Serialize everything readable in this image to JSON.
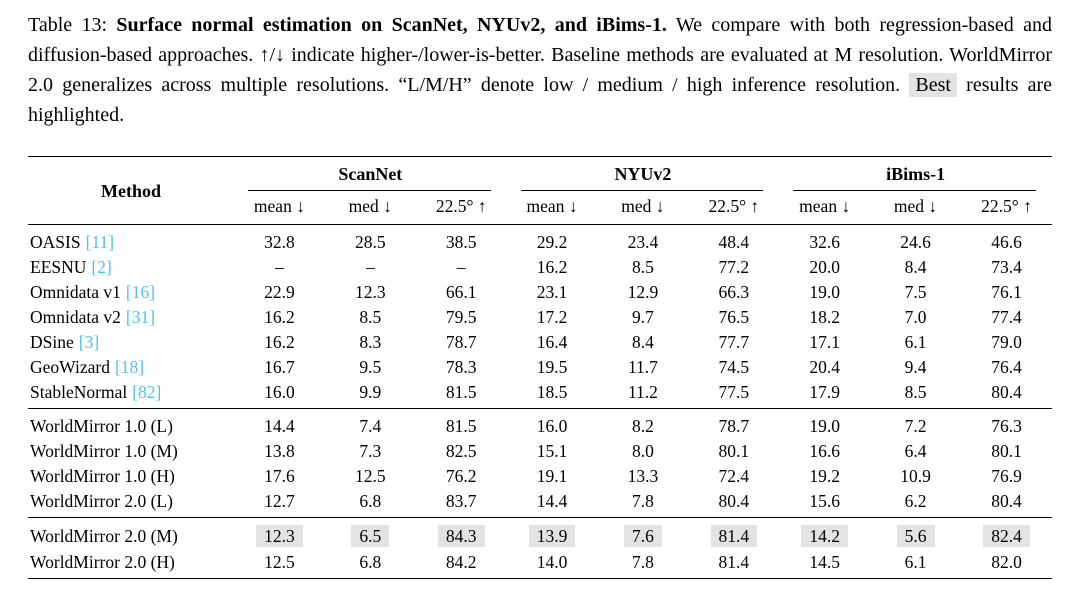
{
  "colors": {
    "citation": "#4fc3e8",
    "highlight": "#e3e3e3"
  },
  "caption": {
    "label": "Table 13: ",
    "title": "Surface normal estimation on ScanNet, NYUv2, and iBims-1.",
    "body": " We compare with both regression-based and diffusion-based approaches. ↑/↓ indicate higher-/lower-is-better. Baseline methods are evaluated at M resolution. WorldMirror 2.0 generalizes across multiple resolutions. “L/M/H” denote low / medium / high inference resolution. ",
    "best": "Best",
    "tail": " results are highlighted."
  },
  "table": {
    "method_header": "Method",
    "groups": [
      "ScanNet",
      "NYUv2",
      "iBims-1"
    ],
    "sub_headers": [
      "mean ↓",
      "med ↓",
      "22.5° ↑"
    ],
    "sections": [
      {
        "rows": [
          {
            "method": "OASIS",
            "cite": "[11]",
            "highlight": false,
            "values": [
              "32.8",
              "28.5",
              "38.5",
              "29.2",
              "23.4",
              "48.4",
              "32.6",
              "24.6",
              "46.6"
            ]
          },
          {
            "method": "EESNU",
            "cite": "[2]",
            "highlight": false,
            "values": [
              "–",
              "–",
              "–",
              "16.2",
              "8.5",
              "77.2",
              "20.0",
              "8.4",
              "73.4"
            ]
          },
          {
            "method": "Omnidata v1",
            "cite": "[16]",
            "highlight": false,
            "values": [
              "22.9",
              "12.3",
              "66.1",
              "23.1",
              "12.9",
              "66.3",
              "19.0",
              "7.5",
              "76.1"
            ]
          },
          {
            "method": "Omnidata v2",
            "cite": "[31]",
            "highlight": false,
            "values": [
              "16.2",
              "8.5",
              "79.5",
              "17.2",
              "9.7",
              "76.5",
              "18.2",
              "7.0",
              "77.4"
            ]
          },
          {
            "method": "DSine",
            "cite": "[3]",
            "highlight": false,
            "values": [
              "16.2",
              "8.3",
              "78.7",
              "16.4",
              "8.4",
              "77.7",
              "17.1",
              "6.1",
              "79.0"
            ]
          },
          {
            "method": "GeoWizard",
            "cite": "[18]",
            "highlight": false,
            "values": [
              "16.7",
              "9.5",
              "78.3",
              "19.5",
              "11.7",
              "74.5",
              "20.4",
              "9.4",
              "76.4"
            ]
          },
          {
            "method": "StableNormal",
            "cite": "[82]",
            "highlight": false,
            "values": [
              "16.0",
              "9.9",
              "81.5",
              "18.5",
              "11.2",
              "77.5",
              "17.9",
              "8.5",
              "80.4"
            ]
          }
        ]
      },
      {
        "rows": [
          {
            "method": "WorldMirror 1.0 (L)",
            "cite": "",
            "highlight": false,
            "values": [
              "14.4",
              "7.4",
              "81.5",
              "16.0",
              "8.2",
              "78.7",
              "19.0",
              "7.2",
              "76.3"
            ]
          },
          {
            "method": "WorldMirror 1.0 (M)",
            "cite": "",
            "highlight": false,
            "values": [
              "13.8",
              "7.3",
              "82.5",
              "15.1",
              "8.0",
              "80.1",
              "16.6",
              "6.4",
              "80.1"
            ]
          },
          {
            "method": "WorldMirror 1.0 (H)",
            "cite": "",
            "highlight": false,
            "values": [
              "17.6",
              "12.5",
              "76.2",
              "19.1",
              "13.3",
              "72.4",
              "19.2",
              "10.9",
              "76.9"
            ]
          },
          {
            "method": "WorldMirror 2.0 (L)",
            "cite": "",
            "highlight": false,
            "values": [
              "12.7",
              "6.8",
              "83.7",
              "14.4",
              "7.8",
              "80.4",
              "15.6",
              "6.2",
              "80.4"
            ]
          }
        ]
      },
      {
        "rows": [
          {
            "method": "WorldMirror 2.0 (M)",
            "cite": "",
            "highlight": true,
            "values": [
              "12.3",
              "6.5",
              "84.3",
              "13.9",
              "7.6",
              "81.4",
              "14.2",
              "5.6",
              "82.4"
            ]
          },
          {
            "method": "WorldMirror 2.0 (H)",
            "cite": "",
            "highlight": false,
            "values": [
              "12.5",
              "6.8",
              "84.2",
              "14.0",
              "7.8",
              "81.4",
              "14.5",
              "6.1",
              "82.0"
            ]
          }
        ]
      }
    ]
  }
}
